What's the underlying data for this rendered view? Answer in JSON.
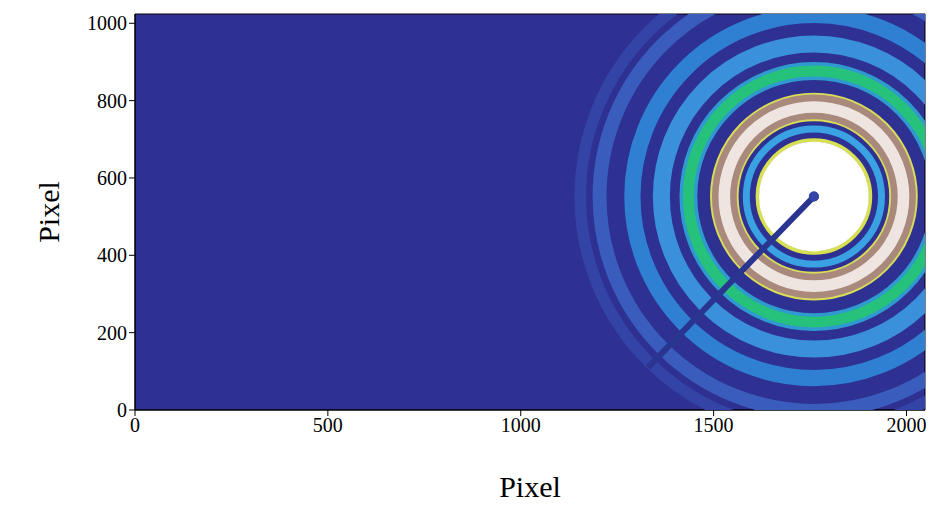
{
  "chart_data": {
    "type": "heatmap",
    "x_label": "Pixel",
    "y_label": "Pixel",
    "xlim": [
      0,
      2048
    ],
    "ylim": [
      0,
      1024
    ],
    "xticks": [
      0,
      500,
      1000,
      1500,
      2000
    ],
    "yticks": [
      0,
      200,
      400,
      600,
      800,
      1000
    ],
    "color": "#2e3192",
    "center": {
      "x": 1760,
      "y": 552,
      "color": "#3344a8"
    },
    "beamstop": {
      "x": [
        1760,
        1330
      ],
      "y": [
        552,
        110
      ],
      "color": "#2a3590"
    },
    "rings": [
      {
        "radius": 605,
        "width": 30,
        "color": "#3443a6"
      },
      {
        "radius": 555,
        "width": 36,
        "color": "#3a5cbc"
      },
      {
        "radius": 470,
        "width": 42,
        "color": "#2f7fd2"
      },
      {
        "radius": 395,
        "width": 44,
        "color": "#3b90dc"
      },
      {
        "radius": 325,
        "width": 46,
        "color": "#2f9ad0"
      },
      {
        "radius": 325,
        "width": 28,
        "color": "#26c27c"
      },
      {
        "radius": 232,
        "width": 74,
        "color": "#d8dc58"
      },
      {
        "radius": 232,
        "width": 64,
        "color": "#a8897c"
      },
      {
        "radius": 232,
        "width": 30,
        "color": "#eee5e1"
      },
      {
        "radius": 175,
        "width": 18,
        "color": "#3aa2e2"
      },
      {
        "radius": 146,
        "width": 10,
        "color": "#d6e050"
      },
      {
        "radius": 71,
        "width": 142,
        "color": "#ffffff"
      }
    ]
  }
}
